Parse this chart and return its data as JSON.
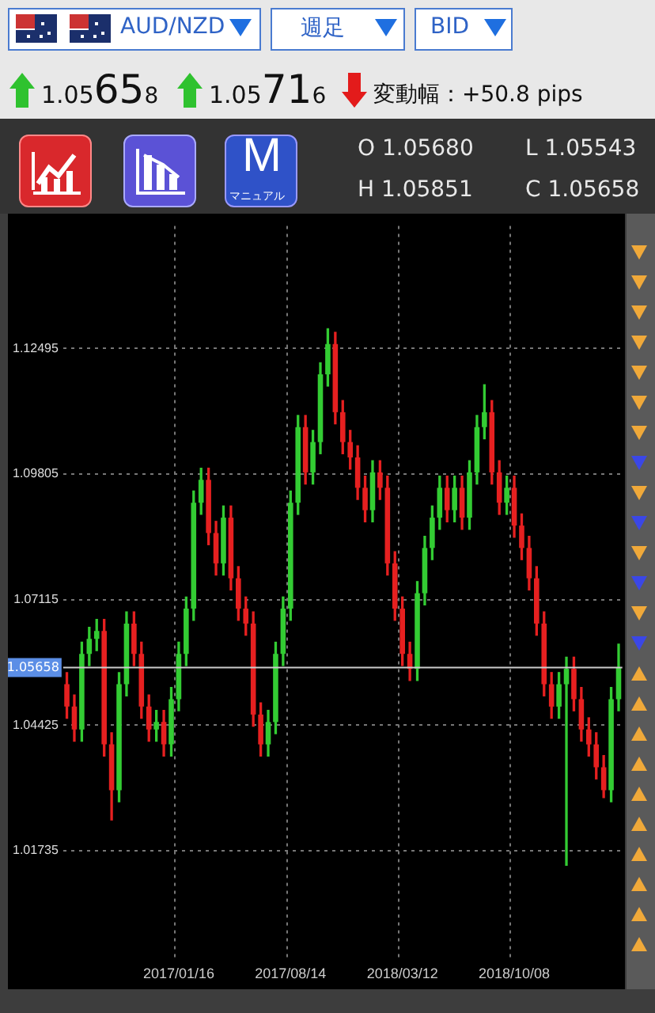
{
  "chart_data": {
    "type": "candlestick",
    "title": "AUD/NZD",
    "subtitle": "週足",
    "annotations": [
      "BID",
      "1.05658",
      "1.05716",
      "変動幅：+50.8 pips",
      "O 1.05680",
      "L 1.05543",
      "H 1.05851",
      "C 1.05658",
      "M",
      "マニュアル"
    ],
    "categories": [
      null,
      null,
      null,
      null,
      null,
      null,
      null,
      null,
      null,
      null,
      null,
      null,
      null,
      null,
      null,
      "2017/01/16",
      null,
      null,
      null,
      null,
      null,
      null,
      null,
      null,
      null,
      null,
      null,
      null,
      null,
      null,
      "2017/08/14",
      null,
      null,
      null,
      null,
      null,
      null,
      null,
      null,
      null,
      null,
      null,
      null,
      null,
      null,
      "2018/03/12",
      null,
      null,
      null,
      null,
      null,
      null,
      null,
      null,
      null,
      null,
      null,
      null,
      null,
      null,
      "2018/10/08",
      null,
      null,
      null,
      null,
      null,
      null,
      null,
      null,
      null,
      null,
      null,
      null,
      null,
      null
    ],
    "ohlc": [
      [
        1.053,
        1.0555,
        1.0457,
        1.0482
      ],
      [
        1.0482,
        1.0507,
        1.0408,
        1.0433
      ],
      [
        1.0433,
        1.062,
        1.0408,
        1.0595
      ],
      [
        1.0595,
        1.0652,
        1.057,
        1.0627
      ],
      [
        1.0627,
        1.0669,
        1.0602,
        1.0644
      ],
      [
        1.0644,
        1.0669,
        1.0376,
        1.0401
      ],
      [
        1.0401,
        1.0426,
        1.0239,
        1.0303
      ],
      [
        1.0303,
        1.0555,
        1.0278,
        1.053
      ],
      [
        1.053,
        1.0685,
        1.0505,
        1.066
      ],
      [
        1.066,
        1.0685,
        1.057,
        1.0595
      ],
      [
        1.0595,
        1.062,
        1.0457,
        1.0482
      ],
      [
        1.0482,
        1.0507,
        1.0408,
        1.0433
      ],
      [
        1.0433,
        1.0474,
        1.0408,
        1.0449
      ],
      [
        1.0449,
        1.0474,
        1.0376,
        1.0401
      ],
      [
        1.0401,
        1.0523,
        1.0376,
        1.0498
      ],
      [
        1.0498,
        1.062,
        1.0473,
        1.0595
      ],
      [
        1.0595,
        1.0717,
        1.057,
        1.0692
      ],
      [
        1.0692,
        1.0944,
        1.0667,
        1.0919
      ],
      [
        1.0919,
        1.0993,
        1.0894,
        1.0968
      ],
      [
        1.0968,
        1.0993,
        1.0829,
        1.0854
      ],
      [
        1.0854,
        1.0879,
        1.0764,
        1.0789
      ],
      [
        1.0789,
        1.0912,
        1.0764,
        1.0887
      ],
      [
        1.0887,
        1.0912,
        1.0732,
        1.0757
      ],
      [
        1.0757,
        1.0782,
        1.0667,
        1.0692
      ],
      [
        1.0692,
        1.0717,
        1.0635,
        1.066
      ],
      [
        1.066,
        1.0685,
        1.044,
        1.0465
      ],
      [
        1.0465,
        1.049,
        1.0376,
        1.0401
      ],
      [
        1.0401,
        1.0474,
        1.0376,
        1.0449
      ],
      [
        1.0449,
        1.062,
        1.0424,
        1.0595
      ],
      [
        1.0595,
        1.0717,
        1.057,
        1.0692
      ],
      [
        1.0692,
        1.0944,
        1.0667,
        1.0919
      ],
      [
        1.0919,
        1.1106,
        1.0894,
        1.1081
      ],
      [
        1.1081,
        1.1106,
        1.0959,
        1.0984
      ],
      [
        1.0984,
        1.1074,
        1.0959,
        1.1049
      ],
      [
        1.1049,
        1.1219,
        1.1024,
        1.1194
      ],
      [
        1.1194,
        1.1292,
        1.1169,
        1.1259
      ],
      [
        1.1259,
        1.1284,
        1.1088,
        1.1113
      ],
      [
        1.1113,
        1.1138,
        1.1024,
        1.1049
      ],
      [
        1.1049,
        1.1074,
        1.0991,
        1.1016
      ],
      [
        1.1016,
        1.1041,
        1.0926,
        1.0951
      ],
      [
        1.0951,
        1.0976,
        1.0878,
        1.0903
      ],
      [
        1.0903,
        1.1009,
        1.0878,
        1.0984
      ],
      [
        1.0984,
        1.1009,
        1.0926,
        1.0951
      ],
      [
        1.0951,
        1.0976,
        1.0764,
        1.0789
      ],
      [
        1.0789,
        1.0814,
        1.0667,
        1.0692
      ],
      [
        1.0692,
        1.0717,
        1.057,
        1.0595
      ],
      [
        1.0595,
        1.062,
        1.0538,
        1.0563
      ],
      [
        1.0563,
        1.075,
        1.0538,
        1.0725
      ],
      [
        1.0725,
        1.0847,
        1.07,
        1.0822
      ],
      [
        1.0822,
        1.0912,
        1.0797,
        1.0887
      ],
      [
        1.0887,
        1.0976,
        1.0862,
        1.0951
      ],
      [
        1.0951,
        1.0976,
        1.0878,
        1.0903
      ],
      [
        1.0903,
        1.0976,
        1.0878,
        1.0951
      ],
      [
        1.0951,
        1.0976,
        1.0862,
        1.0887
      ],
      [
        1.0887,
        1.1009,
        1.0862,
        1.0984
      ],
      [
        1.0984,
        1.1106,
        1.0959,
        1.1081
      ],
      [
        1.1081,
        1.1172,
        1.1056,
        1.1113
      ],
      [
        1.1113,
        1.1138,
        1.0959,
        1.0984
      ],
      [
        1.0984,
        1.1009,
        1.0894,
        1.0919
      ],
      [
        1.0919,
        1.0976,
        1.0894,
        1.0951
      ],
      [
        1.0951,
        1.0976,
        1.0845,
        1.087
      ],
      [
        1.087,
        1.0895,
        1.0797,
        1.0822
      ],
      [
        1.0822,
        1.0847,
        1.0732,
        1.0757
      ],
      [
        1.0757,
        1.0782,
        1.0635,
        1.066
      ],
      [
        1.066,
        1.0685,
        1.0505,
        1.053
      ],
      [
        1.053,
        1.0555,
        1.0457,
        1.0482
      ],
      [
        1.0482,
        1.0555,
        1.0457,
        1.053
      ],
      [
        1.053,
        1.0588,
        1.0142,
        1.0563
      ],
      [
        1.0563,
        1.0588,
        1.0473,
        1.0498
      ],
      [
        1.0498,
        1.0523,
        1.0408,
        1.0433
      ],
      [
        1.0433,
        1.0458,
        1.0376,
        1.0401
      ],
      [
        1.0401,
        1.0426,
        1.0327,
        1.0352
      ],
      [
        1.0352,
        1.0377,
        1.0287,
        1.0303
      ],
      [
        1.0303,
        1.0523,
        1.0278,
        1.0498
      ],
      [
        1.0498,
        1.0616,
        1.0473,
        1.05658
      ]
    ],
    "colors": [
      "#e62020",
      "#e62020",
      "#33cc33",
      "#33cc33",
      "#33cc33",
      "#e62020",
      "#e62020",
      "#33cc33",
      "#33cc33",
      "#e62020",
      "#e62020",
      "#e62020",
      "#33cc33",
      "#e62020",
      "#33cc33",
      "#33cc33",
      "#33cc33",
      "#33cc33",
      "#33cc33",
      "#e62020",
      "#e62020",
      "#33cc33",
      "#e62020",
      "#e62020",
      "#e62020",
      "#e62020",
      "#e62020",
      "#33cc33",
      "#33cc33",
      "#33cc33",
      "#33cc33",
      "#33cc33",
      "#e62020",
      "#33cc33",
      "#33cc33",
      "#33cc33",
      "#e62020",
      "#e62020",
      "#e62020",
      "#e62020",
      "#e62020",
      "#33cc33",
      "#e62020",
      "#e62020",
      "#e62020",
      "#e62020",
      "#e62020",
      "#33cc33",
      "#33cc33",
      "#33cc33",
      "#33cc33",
      "#e62020",
      "#33cc33",
      "#e62020",
      "#33cc33",
      "#33cc33",
      "#33cc33",
      "#e62020",
      "#e62020",
      "#33cc33",
      "#e62020",
      "#e62020",
      "#e62020",
      "#e62020",
      "#e62020",
      "#e62020",
      "#33cc33",
      "#33cc33",
      "#e62020",
      "#e62020",
      "#e62020",
      "#e62020",
      "#e62020",
      "#33cc33",
      "#33cc33"
    ],
    "ylim": [
      0.994,
      1.1512
    ],
    "yticks": [
      1.01735,
      1.04425,
      1.07115,
      1.09805,
      1.12495
    ],
    "grid": true,
    "ref_lines": [
      {
        "axis": "y",
        "value": 1.05658,
        "label": "1.05658",
        "color": "#cccccc"
      }
    ]
  }
}
